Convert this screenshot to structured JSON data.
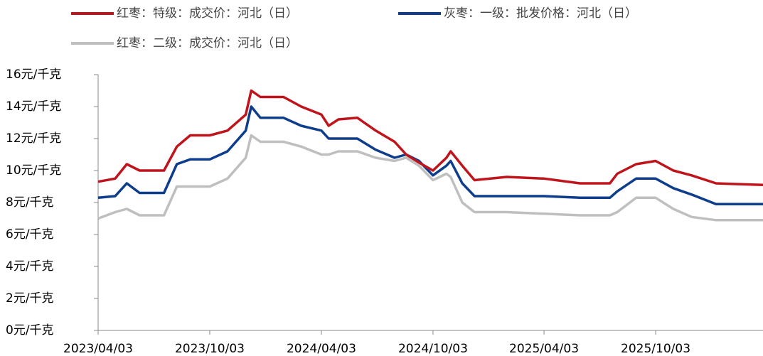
{
  "chart_data": {
    "type": "line",
    "x": [
      "2023/04/03",
      "2023/05/01",
      "2023/05/20",
      "2023/06/10",
      "2023/07/20",
      "2023/08/10",
      "2023/09/01",
      "2023/10/03",
      "2023/11/01",
      "2023/12/01",
      "2023/12/10",
      "2023/12/25",
      "2024/02/01",
      "2024/03/01",
      "2024/04/03",
      "2024/04/15",
      "2024/05/01",
      "2024/06/01",
      "2024/07/01",
      "2024/08/01",
      "2024/08/20",
      "2024/09/10",
      "2024/10/03",
      "2024/10/25",
      "2024/11/01",
      "2024/11/20",
      "2024/12/10",
      "2025/02/01",
      "2025/04/03",
      "2025/06/01",
      "2025/07/20",
      "2025/08/01",
      "2025/09/01",
      "2025/10/03",
      "2025/11/01",
      "2025/12/01",
      "2026/01/10",
      "2026/03/28"
    ],
    "series": [
      {
        "name": "红枣：特级：成交价：河北（日）",
        "color": "#c0141c",
        "values": [
          9.3,
          9.5,
          10.4,
          10.0,
          10.0,
          11.5,
          12.2,
          12.2,
          12.5,
          13.5,
          15.0,
          14.6,
          14.6,
          14.0,
          13.5,
          12.8,
          13.2,
          13.3,
          12.5,
          11.8,
          11.0,
          10.5,
          10.0,
          10.8,
          11.2,
          10.3,
          9.4,
          9.6,
          9.5,
          9.2,
          9.2,
          9.8,
          10.4,
          10.6,
          10.0,
          9.7,
          9.2,
          9.1
        ]
      },
      {
        "name": "灰枣：一级：批发价格：河北（日）",
        "color": "#0e3d8c",
        "values": [
          8.3,
          8.4,
          9.2,
          8.6,
          8.6,
          10.4,
          10.7,
          10.7,
          11.2,
          12.5,
          14.0,
          13.3,
          13.3,
          12.8,
          12.5,
          12.0,
          12.0,
          12.0,
          11.3,
          10.8,
          11.0,
          10.6,
          9.7,
          10.3,
          10.6,
          9.2,
          8.4,
          8.4,
          8.4,
          8.3,
          8.3,
          8.7,
          9.5,
          9.5,
          8.9,
          8.5,
          7.9,
          7.9
        ]
      },
      {
        "name": "红枣：二级：成交价：河北（日）",
        "color": "#bfbfbf",
        "values": [
          7.0,
          7.4,
          7.6,
          7.2,
          7.2,
          9.0,
          9.0,
          9.0,
          9.5,
          10.8,
          12.2,
          11.8,
          11.8,
          11.5,
          11.0,
          11.0,
          11.2,
          11.2,
          10.8,
          10.6,
          10.8,
          10.3,
          9.4,
          9.8,
          9.6,
          8.0,
          7.4,
          7.4,
          7.3,
          7.2,
          7.2,
          7.4,
          8.3,
          8.3,
          7.6,
          7.1,
          6.9,
          6.9
        ]
      }
    ],
    "xlim": [
      "2023/04/03",
      "2026/03/28"
    ],
    "xticks": [
      "2023/04/03",
      "2023/10/03",
      "2024/04/03",
      "2024/10/03",
      "2025/04/03",
      "2025/10/03"
    ],
    "ylim": [
      0,
      16
    ],
    "yticks": [
      {
        "value": 0,
        "label": "0元/千克"
      },
      {
        "value": 2,
        "label": "2元/千克"
      },
      {
        "value": 4,
        "label": "4元/千克"
      },
      {
        "value": 6,
        "label": "6元/千克"
      },
      {
        "value": 8,
        "label": "8元/千克"
      },
      {
        "value": 10,
        "label": "10元/千克"
      },
      {
        "value": 12,
        "label": "12元/千克"
      },
      {
        "value": 14,
        "label": "14元/千克"
      },
      {
        "value": 16,
        "label": "16元/千克"
      }
    ],
    "legend": "top"
  }
}
